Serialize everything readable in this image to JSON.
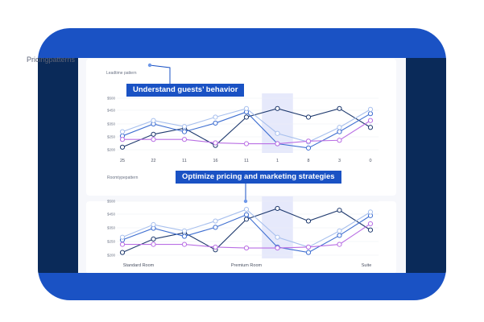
{
  "colors": {
    "frame": "#1a52c4",
    "side_panels": "#0a2a59",
    "screen": "#f6f7fb",
    "callout": "#1a52c4",
    "highlight_column": "#e6e9fb"
  },
  "section_title": "Pricingpatterns",
  "callouts": {
    "top": "Understand guests’ behavior",
    "bottom": "Optimize pricing and marketing strategies"
  },
  "chart_data": [
    {
      "type": "line",
      "subtitle": "Leadtime pattern",
      "categories": [
        "25",
        "22",
        "11",
        "16",
        "11",
        "1",
        "8",
        "3",
        "0"
      ],
      "y_ticks": [
        "$500",
        "$450",
        "$350",
        "$250",
        "$200"
      ],
      "ylim": [
        200,
        500
      ],
      "highlight_category": "1",
      "series": [
        {
          "color": "#1f3a6e",
          "values": [
            215,
            290,
            325,
            225,
            390,
            440,
            390,
            440,
            330
          ]
        },
        {
          "color": "#3f6fd1",
          "values": [
            280,
            350,
            305,
            355,
            420,
            235,
            210,
            305,
            410
          ]
        },
        {
          "color": "#a8c0ee",
          "values": [
            305,
            370,
            335,
            390,
            440,
            295,
            245,
            330,
            435
          ]
        },
        {
          "color": "#b96fe4",
          "values": [
            260,
            260,
            260,
            240,
            235,
            235,
            250,
            255,
            370
          ]
        }
      ]
    },
    {
      "type": "line",
      "subtitle": "Roomtypepattern",
      "categories": [
        "Standard Room",
        "",
        "",
        "",
        "Premium Room",
        "",
        "",
        "",
        "Suite"
      ],
      "y_ticks": [
        "$500",
        "$450",
        "$350",
        "$250",
        "$200"
      ],
      "ylim": [
        200,
        500
      ],
      "highlight_category_index": 5,
      "series": [
        {
          "color": "#1f3a6e",
          "values": [
            215,
            290,
            325,
            230,
            400,
            460,
            390,
            450,
            340
          ]
        },
        {
          "color": "#3f6fd1",
          "values": [
            285,
            350,
            305,
            355,
            425,
            245,
            215,
            310,
            420
          ]
        },
        {
          "color": "#a8c0ee",
          "values": [
            300,
            370,
            335,
            390,
            455,
            300,
            245,
            335,
            440
          ]
        },
        {
          "color": "#b96fe4",
          "values": [
            260,
            260,
            260,
            245,
            240,
            240,
            245,
            260,
            375
          ]
        }
      ]
    }
  ]
}
